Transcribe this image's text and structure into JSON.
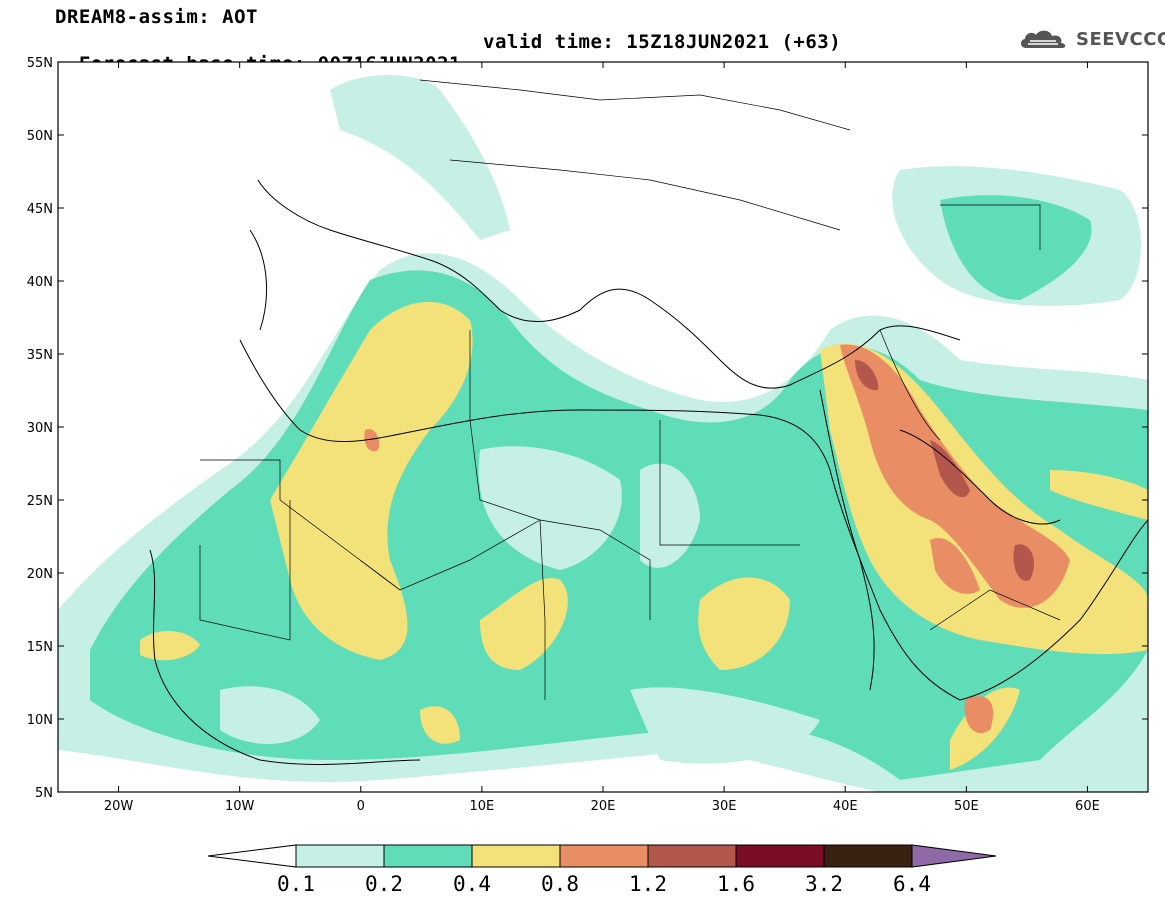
{
  "header": {
    "line1": "DREAM8-assim: AOT",
    "base_time": "Forecast base time: 00Z16JUN2021",
    "valid_time": "valid time: 15Z18JUN2021 (+63)"
  },
  "logo": {
    "text": "SEEVCCC",
    "icon": "cloud-logo-icon"
  },
  "axes": {
    "lat_labels": [
      "55N",
      "50N",
      "45N",
      "40N",
      "35N",
      "30N",
      "25N",
      "20N",
      "15N",
      "10N",
      "5N"
    ],
    "lon_labels": [
      "20W",
      "10W",
      "0",
      "10E",
      "20E",
      "30E",
      "40E",
      "50E",
      "60E"
    ]
  },
  "colorbar": {
    "labels": [
      "0.1",
      "0.2",
      "0.4",
      "0.8",
      "1.2",
      "1.6",
      "3.2",
      "6.4"
    ],
    "colors": [
      "#ffffff",
      "#c6f0e6",
      "#5fdcb8",
      "#f3e17a",
      "#e98e64",
      "#b3574c",
      "#7b0d24",
      "#3a2212",
      "#8e6aa6"
    ]
  },
  "map_data": {
    "extent": {
      "lon": [
        -25,
        65
      ],
      "lat": [
        5,
        55
      ]
    },
    "field": "AOT",
    "levels": [
      0.1,
      0.2,
      0.4,
      0.8,
      1.2,
      1.6,
      3.2,
      6.4
    ]
  }
}
